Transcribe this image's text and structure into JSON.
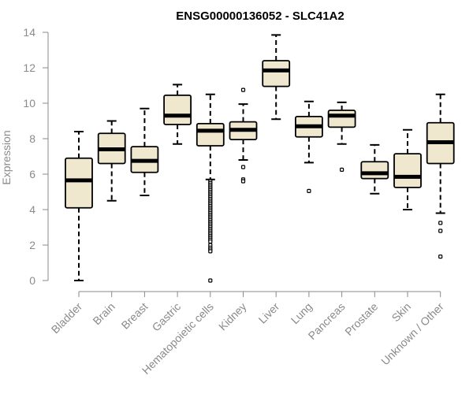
{
  "chart_data": {
    "type": "boxplot",
    "title": "ENSG00000136052 - SLC41A2",
    "xlabel": "",
    "ylabel": "Expression",
    "ylim": [
      0,
      14
    ],
    "yticks": [
      0,
      2,
      4,
      6,
      8,
      10,
      12,
      14
    ],
    "ytick_labels": [
      "0",
      "2",
      "4",
      "6",
      "8",
      "10",
      "12",
      "14"
    ],
    "box_fill": "#efe8cf",
    "line_color": "#000000",
    "axis_color": "#8a8a8a",
    "categories": [
      {
        "name": "Bladder",
        "whisker_low": 0.0,
        "q1": 4.1,
        "median": 5.65,
        "q3": 6.9,
        "whisker_high": 8.4,
        "outliers": []
      },
      {
        "name": "Brain",
        "whisker_low": 4.5,
        "q1": 6.6,
        "median": 7.4,
        "q3": 8.3,
        "whisker_high": 9.0,
        "outliers": []
      },
      {
        "name": "Breast",
        "whisker_low": 4.8,
        "q1": 6.1,
        "median": 6.75,
        "q3": 7.55,
        "whisker_high": 9.7,
        "outliers": []
      },
      {
        "name": "Gastric",
        "whisker_low": 7.7,
        "q1": 8.8,
        "median": 9.3,
        "q3": 10.45,
        "whisker_high": 11.05,
        "outliers": []
      },
      {
        "name": "Hematopoietic cells",
        "whisker_low": 5.7,
        "q1": 7.6,
        "median": 8.45,
        "q3": 8.85,
        "whisker_high": 10.5,
        "outliers": [
          5.6,
          5.5,
          5.4,
          5.3,
          5.2,
          5.1,
          5.0,
          4.9,
          4.8,
          4.7,
          4.6,
          4.5,
          4.4,
          4.3,
          4.2,
          4.1,
          4.0,
          3.9,
          3.8,
          3.7,
          3.6,
          3.5,
          3.4,
          3.3,
          3.2,
          3.1,
          3.0,
          2.9,
          2.8,
          2.7,
          2.6,
          2.5,
          2.4,
          2.3,
          2.2,
          2.0,
          1.85,
          1.75,
          1.65,
          0.0
        ]
      },
      {
        "name": "Kidney",
        "whisker_low": 6.8,
        "q1": 7.95,
        "median": 8.5,
        "q3": 8.95,
        "whisker_high": 9.95,
        "outliers": [
          10.75,
          6.4,
          5.7,
          5.6
        ]
      },
      {
        "name": "Liver",
        "whisker_low": 9.1,
        "q1": 10.95,
        "median": 11.85,
        "q3": 12.4,
        "whisker_high": 13.85,
        "outliers": []
      },
      {
        "name": "Lung",
        "whisker_low": 6.65,
        "q1": 8.1,
        "median": 8.7,
        "q3": 9.25,
        "whisker_high": 10.1,
        "outliers": [
          5.05
        ]
      },
      {
        "name": "Pancreas",
        "whisker_low": 7.7,
        "q1": 8.65,
        "median": 9.3,
        "q3": 9.6,
        "whisker_high": 10.05,
        "outliers": [
          6.25
        ]
      },
      {
        "name": "Prostate",
        "whisker_low": 4.9,
        "q1": 5.75,
        "median": 6.05,
        "q3": 6.7,
        "whisker_high": 7.65,
        "outliers": []
      },
      {
        "name": "Skin",
        "whisker_low": 4.0,
        "q1": 5.25,
        "median": 5.85,
        "q3": 7.15,
        "whisker_high": 8.5,
        "outliers": []
      },
      {
        "name": "Unknown / Other",
        "whisker_low": 3.8,
        "q1": 6.6,
        "median": 7.8,
        "q3": 8.9,
        "whisker_high": 10.5,
        "outliers": [
          3.25,
          2.8,
          1.35
        ]
      }
    ]
  }
}
